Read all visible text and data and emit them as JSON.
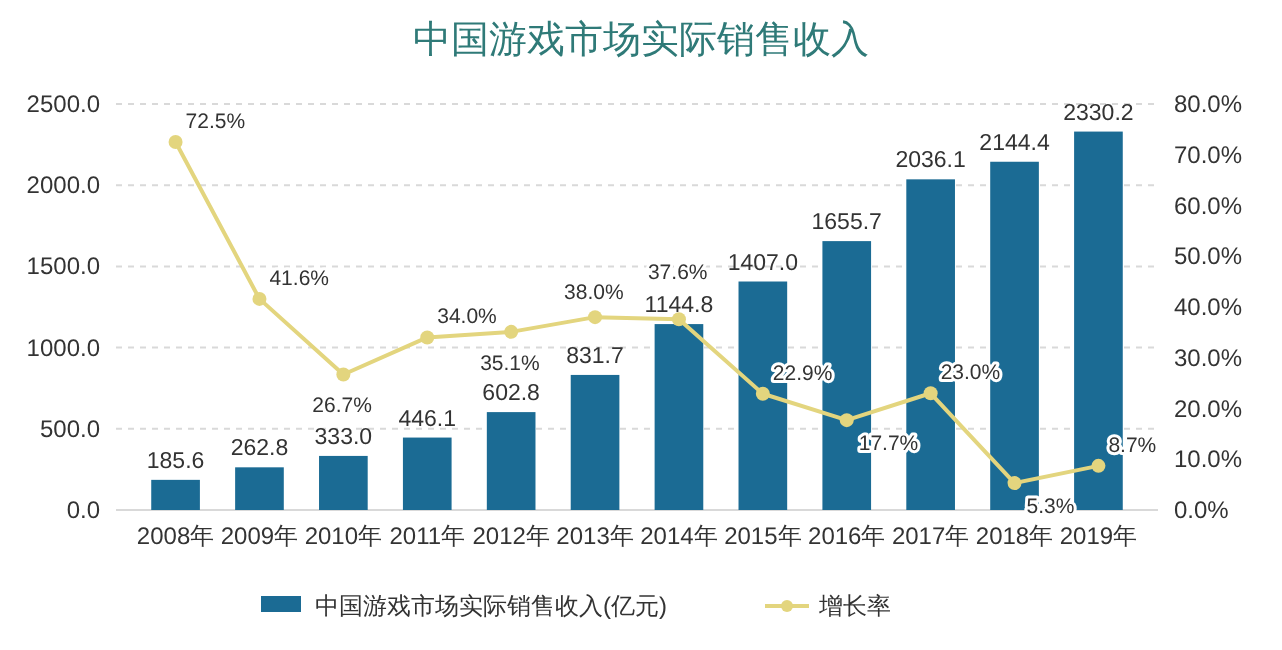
{
  "chart_data": {
    "type": "bar",
    "title": "中国游戏市场实际销售收入",
    "categories": [
      "2008年",
      "2009年",
      "2010年",
      "2011年",
      "2012年",
      "2013年",
      "2014年",
      "2015年",
      "2016年",
      "2017年",
      "2018年",
      "2019年"
    ],
    "series": [
      {
        "name": "中国游戏市场实际销售收入(亿元)",
        "color": "#1b6b94",
        "values": [
          185.6,
          262.8,
          333.0,
          446.1,
          602.8,
          831.7,
          1144.8,
          1407.0,
          1655.7,
          2036.1,
          2144.4,
          2330.2
        ],
        "value_labels": [
          "185.6",
          "262.8",
          "333.0",
          "446.1",
          "602.8",
          "831.7",
          "1144.8",
          "1407.0",
          "1655.7",
          "2036.1",
          "2144.4",
          "2330.2"
        ]
      },
      {
        "name": "增长率",
        "type": "line",
        "axis": "y2",
        "color": "#e3d57e",
        "marker": "circle",
        "values": [
          72.5,
          41.6,
          26.7,
          34.0,
          35.1,
          38.0,
          37.6,
          22.9,
          17.7,
          23.0,
          5.3,
          8.7
        ],
        "value_labels": [
          "72.5%",
          "41.6%",
          "26.7%",
          "34.0%",
          "35.1%",
          "38.0%",
          "37.6%",
          "22.9%",
          "17.7%",
          "23.0%",
          "5.3%",
          "8.7%"
        ]
      }
    ],
    "ylim": [
      0,
      2500
    ],
    "yticks": [
      {
        "value": 0,
        "label": "0.0"
      },
      {
        "value": 500,
        "label": "500.0"
      },
      {
        "value": 1000,
        "label": "1000.0"
      },
      {
        "value": 1500,
        "label": "1500.0"
      },
      {
        "value": 2000,
        "label": "2000.0"
      },
      {
        "value": 2500,
        "label": "2500.0"
      }
    ],
    "y2lim": [
      0,
      80
    ],
    "y2ticks": [
      {
        "value": 0,
        "label": "0.0%"
      },
      {
        "value": 10,
        "label": "10.0%"
      },
      {
        "value": 20,
        "label": "20.0%"
      },
      {
        "value": 30,
        "label": "30.0%"
      },
      {
        "value": 40,
        "label": "40.0%"
      },
      {
        "value": 50,
        "label": "50.0%"
      },
      {
        "value": 60,
        "label": "60.0%"
      },
      {
        "value": 70,
        "label": "70.0%"
      },
      {
        "value": 80,
        "label": "80.0%"
      }
    ],
    "grid": "y",
    "legend": "bottom"
  }
}
